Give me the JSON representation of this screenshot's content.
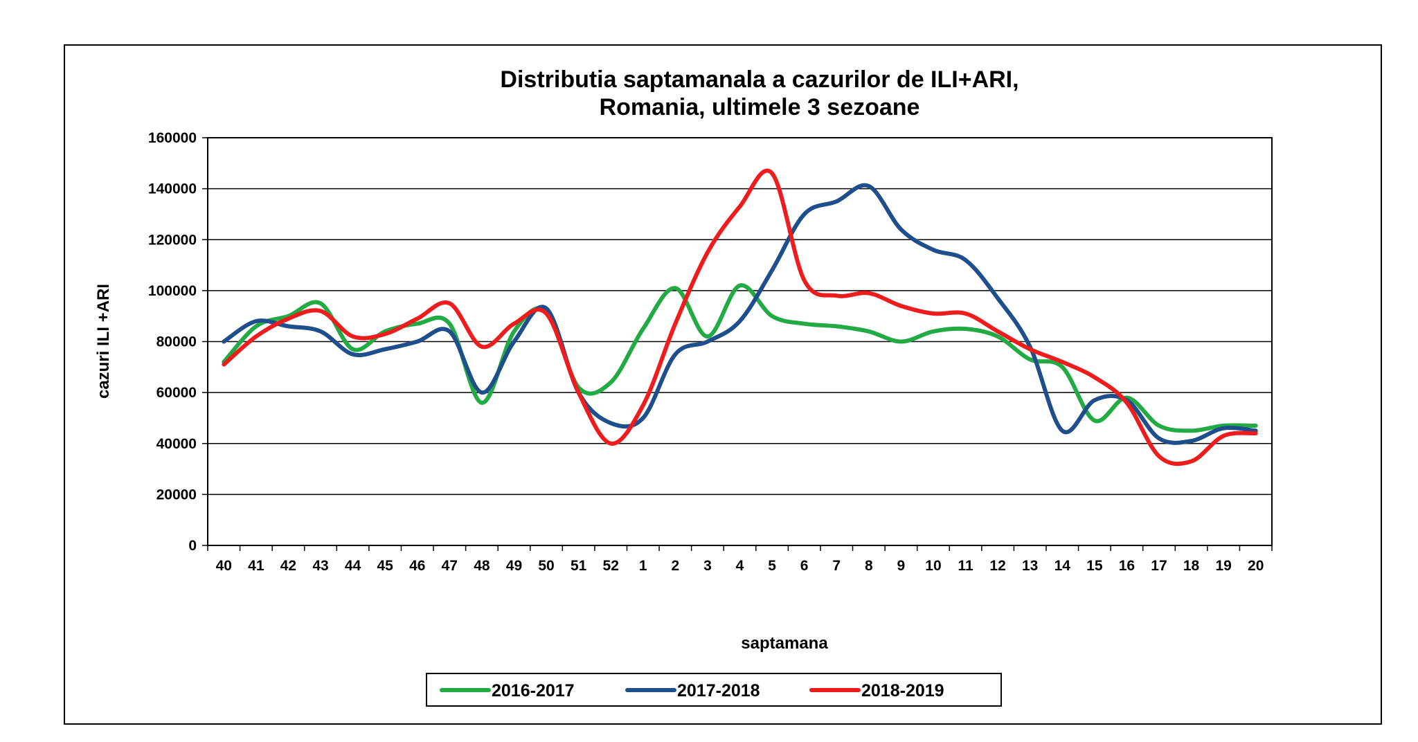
{
  "chart_data": {
    "type": "line",
    "title": [
      "Distributia saptamanala a cazurilor de ILI+ARI,",
      "Romania, ultimele 3 sezoane"
    ],
    "xlabel": "saptamana",
    "ylabel": "cazuri ILI +ARI",
    "categories": [
      "40",
      "41",
      "42",
      "43",
      "44",
      "45",
      "46",
      "47",
      "48",
      "49",
      "50",
      "51",
      "52",
      "1",
      "2",
      "3",
      "4",
      "5",
      "6",
      "7",
      "8",
      "9",
      "10",
      "11",
      "12",
      "13",
      "14",
      "15",
      "16",
      "17",
      "18",
      "19",
      "20"
    ],
    "ylim": [
      0,
      160000
    ],
    "yticks": [
      "0",
      "20000",
      "40000",
      "60000",
      "80000",
      "100000",
      "120000",
      "140000",
      "160000"
    ],
    "grid": "horizontal",
    "legend_position": "bottom",
    "series": [
      {
        "name": "2016-2017",
        "color": "#22aa44",
        "values": [
          72000,
          86000,
          90000,
          95000,
          77000,
          84000,
          87000,
          87000,
          56000,
          84000,
          92000,
          62000,
          64000,
          85000,
          101000,
          82000,
          102000,
          90000,
          87000,
          86000,
          84000,
          80000,
          84000,
          85000,
          82000,
          73000,
          70000,
          49000,
          58000,
          47000,
          45000,
          47000,
          47000
        ]
      },
      {
        "name": "2017-2018",
        "color": "#1f4e8c",
        "values": [
          80000,
          88000,
          86000,
          84000,
          75000,
          77000,
          80000,
          84000,
          60000,
          80000,
          93000,
          60000,
          48000,
          50000,
          75000,
          80000,
          88000,
          108000,
          130000,
          135000,
          141000,
          124000,
          116000,
          112000,
          97000,
          78000,
          45000,
          57000,
          57000,
          42000,
          41000,
          46000,
          45000
        ]
      },
      {
        "name": "2018-2019",
        "color": "#ee1c1c",
        "values": [
          71000,
          82000,
          89000,
          92000,
          82000,
          83000,
          89000,
          95000,
          78000,
          87000,
          91000,
          60000,
          40000,
          55000,
          87000,
          115000,
          133000,
          146000,
          104000,
          98000,
          99000,
          94000,
          91000,
          91000,
          84000,
          77000,
          72000,
          66000,
          56000,
          35000,
          33000,
          43000,
          44000
        ]
      }
    ]
  }
}
